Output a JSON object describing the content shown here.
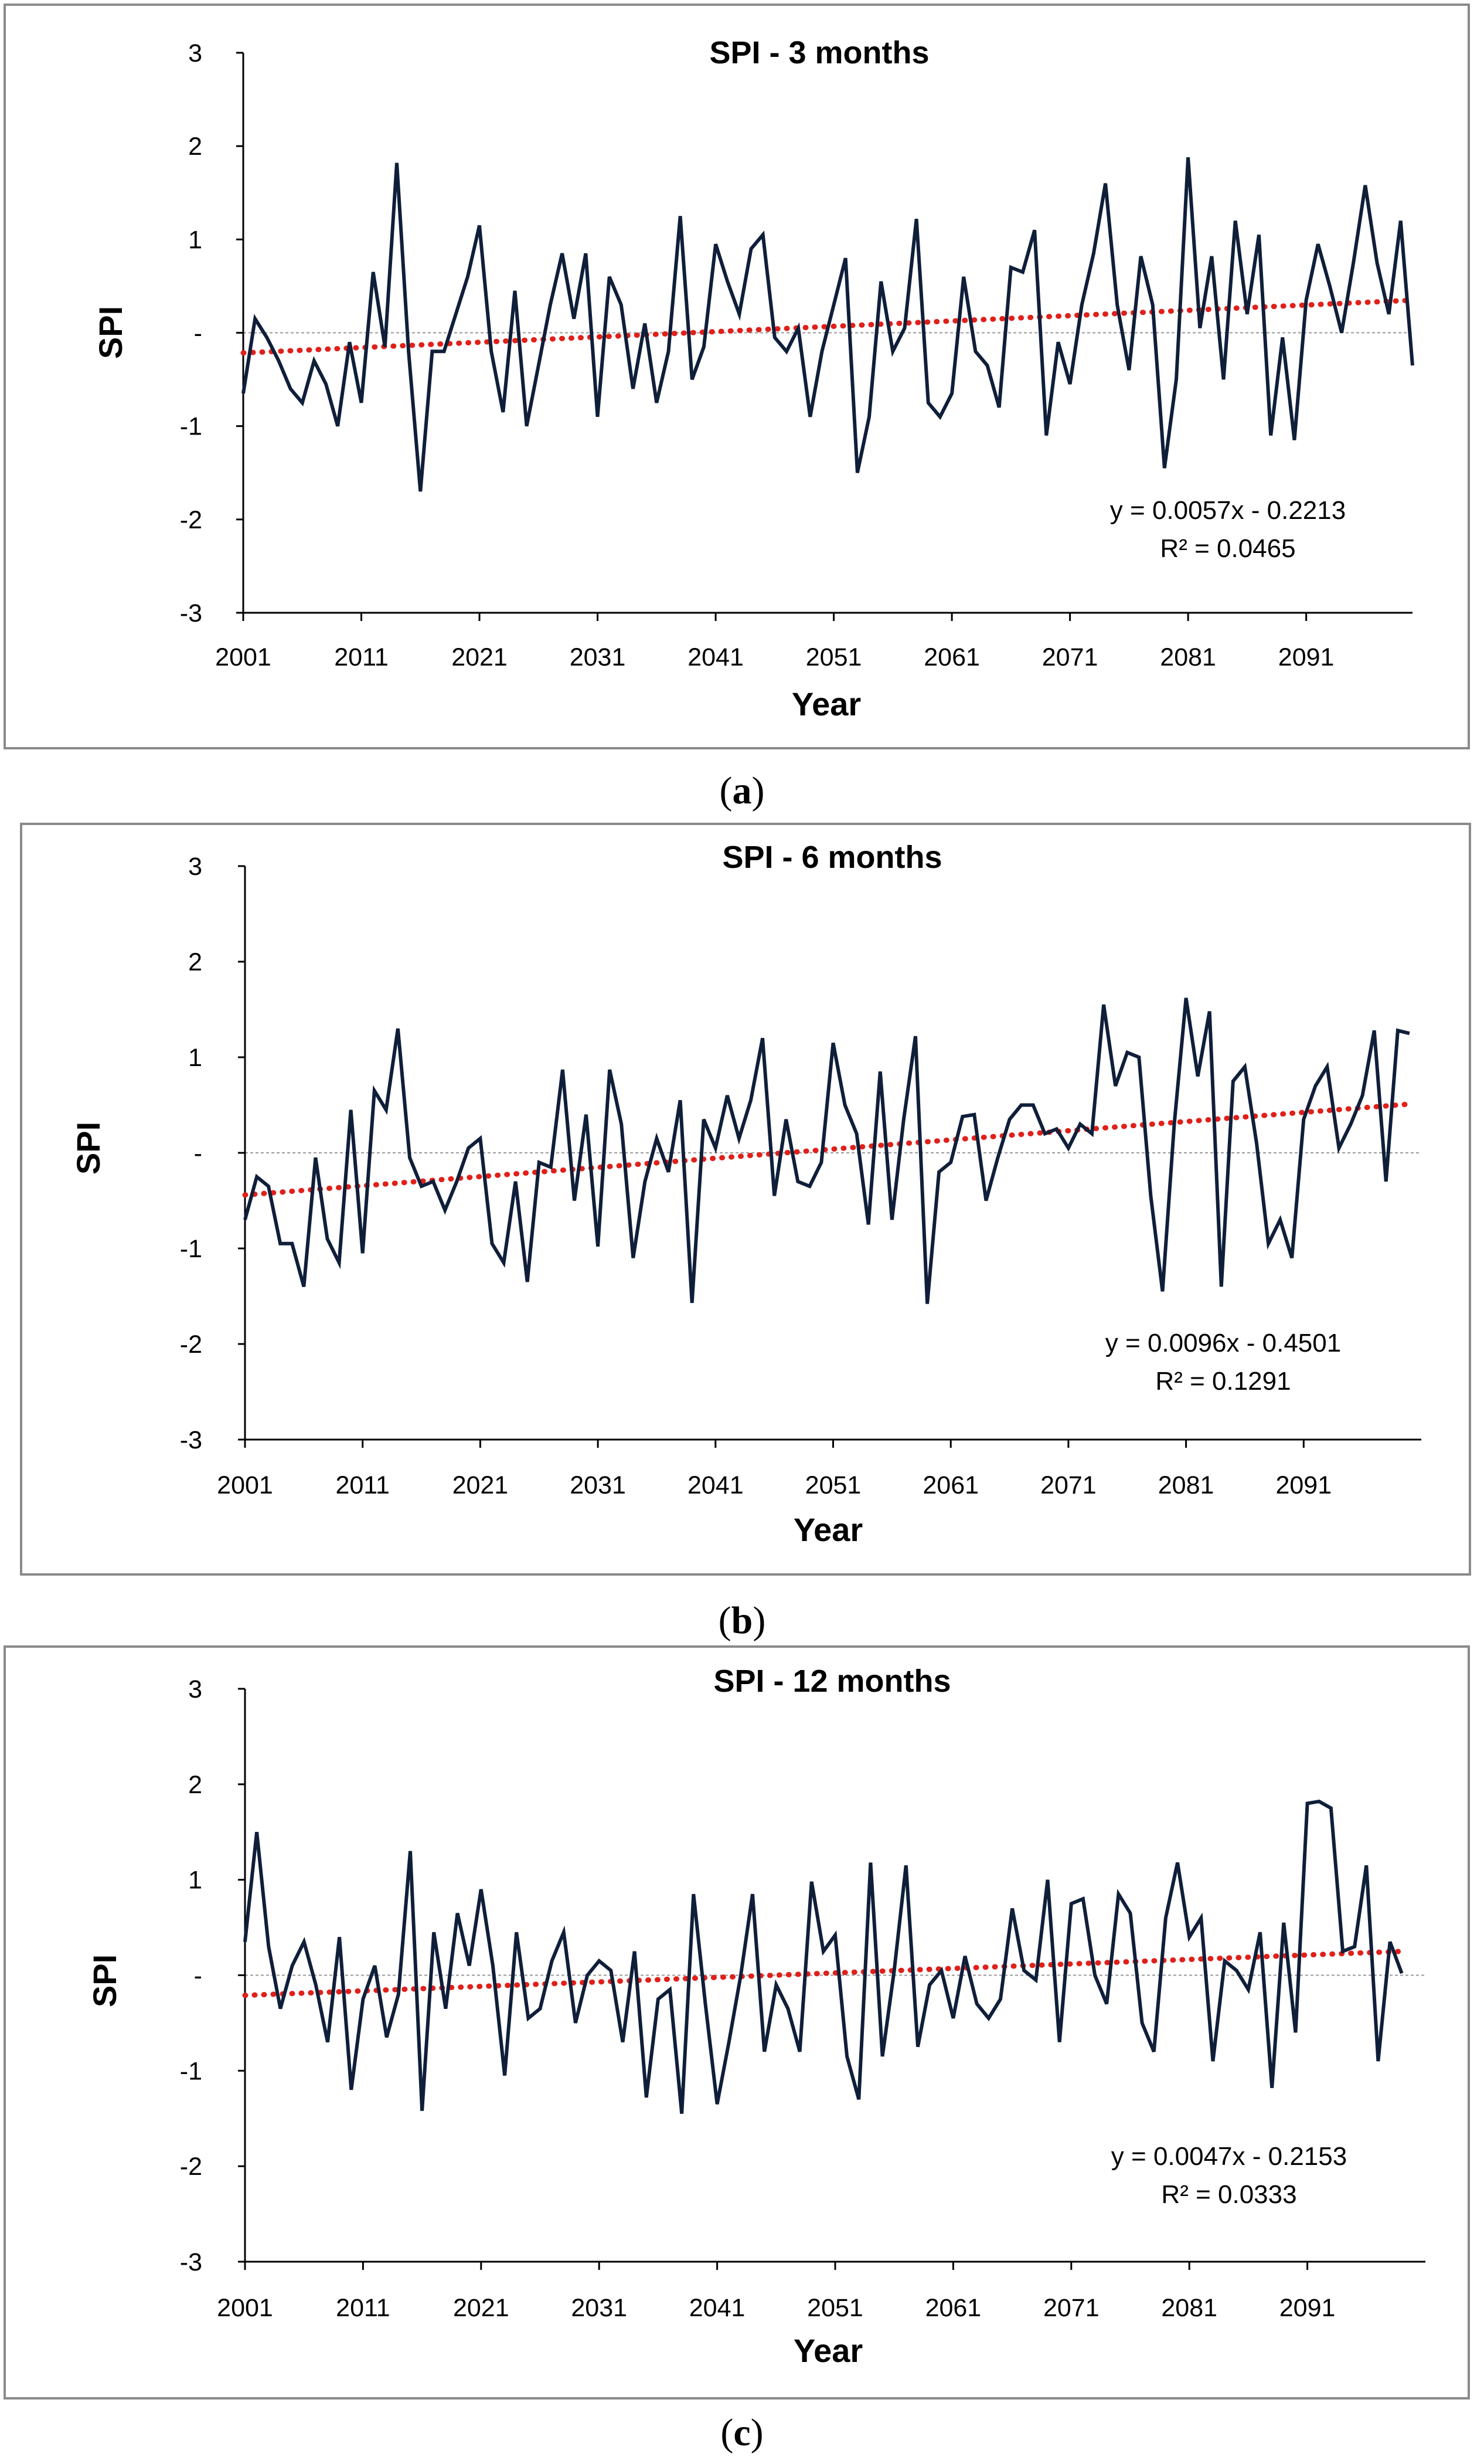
{
  "chart_data": [
    {
      "type": "line",
      "panel": "a",
      "caption_letter": "a",
      "title": "SPI - 3 months",
      "xlabel": "Year",
      "ylabel": "SPI",
      "xlim": [
        2001,
        2100
      ],
      "ylim": [
        -3,
        3
      ],
      "x_ticks": [
        2001,
        2011,
        2021,
        2031,
        2041,
        2051,
        2061,
        2071,
        2081,
        2091
      ],
      "y_ticks": [
        3,
        2,
        1,
        "-",
        -1,
        -2,
        -3
      ],
      "x_start": 2001,
      "series": [
        {
          "name": "SPI",
          "color": "#0f1f3a",
          "values": [
            -0.65,
            0.15,
            -0.05,
            -0.3,
            -0.6,
            -0.75,
            -0.3,
            -0.55,
            -1.0,
            -0.1,
            -0.75,
            0.65,
            -0.15,
            1.82,
            -0.2,
            -1.7,
            -0.2,
            -0.2,
            0.2,
            0.6,
            1.15,
            -0.2,
            -0.85,
            0.45,
            -1.0,
            -0.35,
            0.3,
            0.85,
            0.15,
            0.85,
            -0.9,
            0.6,
            0.3,
            -0.6,
            0.1,
            -0.75,
            -0.2,
            1.25,
            -0.5,
            -0.15,
            0.95,
            0.55,
            0.2,
            0.9,
            1.05,
            -0.05,
            -0.2,
            0.05,
            -0.9,
            -0.2,
            0.3,
            0.8,
            -1.5,
            -0.9,
            0.55,
            -0.2,
            0.05,
            1.22,
            -0.75,
            -0.9,
            -0.65,
            0.6,
            -0.2,
            -0.35,
            -0.8,
            0.7,
            0.65,
            1.1,
            -1.1,
            -0.1,
            -0.55,
            0.3,
            0.85,
            1.6,
            0.3,
            -0.4,
            0.82,
            0.3,
            -1.45,
            -0.5,
            1.88,
            0.05,
            0.82,
            -0.5,
            1.2,
            0.2,
            1.05,
            -1.1,
            -0.05,
            -1.15,
            0.35,
            0.95,
            0.5,
            0.0,
            0.75,
            1.58,
            0.75,
            0.2,
            1.2,
            -0.35
          ]
        }
      ],
      "trendline": {
        "color": "#e0201a",
        "equation": "y = 0.0057x - 0.2213",
        "r_squared": "R² = 0.0465",
        "slope": 0.0057,
        "intercept": -0.2213
      }
    },
    {
      "type": "line",
      "panel": "b",
      "caption_letter": "b",
      "title": "SPI - 6 months",
      "xlabel": "Year",
      "ylabel": "SPI",
      "xlim": [
        2001,
        2101
      ],
      "ylim": [
        -3,
        3
      ],
      "x_ticks": [
        2001,
        2011,
        2021,
        2031,
        2041,
        2051,
        2061,
        2071,
        2081,
        2091
      ],
      "y_ticks": [
        3,
        2,
        1,
        "-",
        -1,
        -2,
        -3
      ],
      "x_start": 2001,
      "series": [
        {
          "name": "SPI",
          "color": "#0f1f3a",
          "values": [
            -0.7,
            -0.25,
            -0.35,
            -0.95,
            -0.95,
            -1.4,
            -0.05,
            -0.9,
            -1.15,
            0.45,
            -1.05,
            0.65,
            0.45,
            1.3,
            -0.05,
            -0.35,
            -0.3,
            -0.6,
            -0.3,
            0.05,
            0.15,
            -0.95,
            -1.15,
            -0.3,
            -1.35,
            -0.1,
            -0.15,
            0.87,
            -0.5,
            0.4,
            -0.98,
            0.87,
            0.3,
            -1.1,
            -0.3,
            0.15,
            -0.2,
            0.55,
            -1.57,
            0.35,
            0.05,
            0.6,
            0.15,
            0.55,
            1.2,
            -0.45,
            0.35,
            -0.3,
            -0.35,
            -0.1,
            1.15,
            0.5,
            0.2,
            -0.75,
            0.85,
            -0.7,
            0.35,
            1.22,
            -1.58,
            -0.2,
            -0.1,
            0.38,
            0.4,
            -0.5,
            -0.05,
            0.35,
            0.5,
            0.5,
            0.2,
            0.25,
            0.05,
            0.3,
            0.2,
            1.55,
            0.7,
            1.05,
            1.0,
            -0.45,
            -1.45,
            0.3,
            1.62,
            0.8,
            1.48,
            -1.4,
            0.75,
            0.9,
            0.1,
            -0.95,
            -0.7,
            -1.1,
            0.35,
            0.7,
            0.9,
            0.05,
            0.3,
            0.6,
            1.28,
            -0.3,
            1.28,
            1.25
          ]
        }
      ],
      "trendline": {
        "color": "#e0201a",
        "equation": "y = 0.0096x - 0.4501",
        "r_squared": "R² = 0.1291",
        "slope": 0.0096,
        "intercept": -0.4501
      }
    },
    {
      "type": "line",
      "panel": "c",
      "caption_letter": "c",
      "title": "SPI - 12 months",
      "xlabel": "Year",
      "ylabel": "SPI",
      "xlim": [
        2001,
        2101
      ],
      "ylim": [
        -3,
        3
      ],
      "x_ticks": [
        2001,
        2011,
        2021,
        2031,
        2041,
        2051,
        2061,
        2071,
        2081,
        2091
      ],
      "y_ticks": [
        3,
        2,
        1,
        "-",
        -1,
        -2,
        -3
      ],
      "x_start": 2001,
      "series": [
        {
          "name": "SPI",
          "color": "#0f1f3a",
          "values": [
            0.35,
            1.5,
            0.3,
            -0.35,
            0.1,
            0.35,
            -0.1,
            -0.7,
            0.4,
            -1.2,
            -0.25,
            0.1,
            -0.65,
            -0.2,
            1.3,
            -1.42,
            0.45,
            -0.35,
            0.65,
            0.1,
            0.9,
            0.1,
            -1.05,
            0.45,
            -0.45,
            -0.35,
            0.15,
            0.45,
            -0.5,
            0.0,
            0.15,
            0.05,
            -0.7,
            0.25,
            -1.28,
            -0.25,
            -0.15,
            -1.45,
            0.85,
            -0.3,
            -1.35,
            -0.7,
            0.0,
            0.85,
            -0.8,
            -0.1,
            -0.35,
            -0.8,
            0.98,
            0.25,
            0.42,
            -0.85,
            -1.3,
            1.18,
            -0.85,
            0.05,
            1.15,
            -0.75,
            -0.1,
            0.05,
            -0.45,
            0.2,
            -0.3,
            -0.45,
            -0.25,
            0.7,
            0.05,
            -0.05,
            1.0,
            -0.7,
            0.75,
            0.8,
            0.0,
            -0.3,
            0.85,
            0.65,
            -0.5,
            -0.8,
            0.6,
            1.18,
            0.4,
            0.6,
            -0.9,
            0.15,
            0.05,
            -0.15,
            0.45,
            -1.18,
            0.55,
            -0.6,
            1.8,
            1.82,
            1.75,
            0.25,
            0.3,
            1.15,
            -0.9,
            0.35,
            0.02
          ]
        }
      ],
      "trendline": {
        "color": "#e0201a",
        "equation": "y = 0.0047x - 0.2153",
        "r_squared": "R² = 0.0333",
        "slope": 0.0047,
        "intercept": -0.2153
      }
    }
  ]
}
